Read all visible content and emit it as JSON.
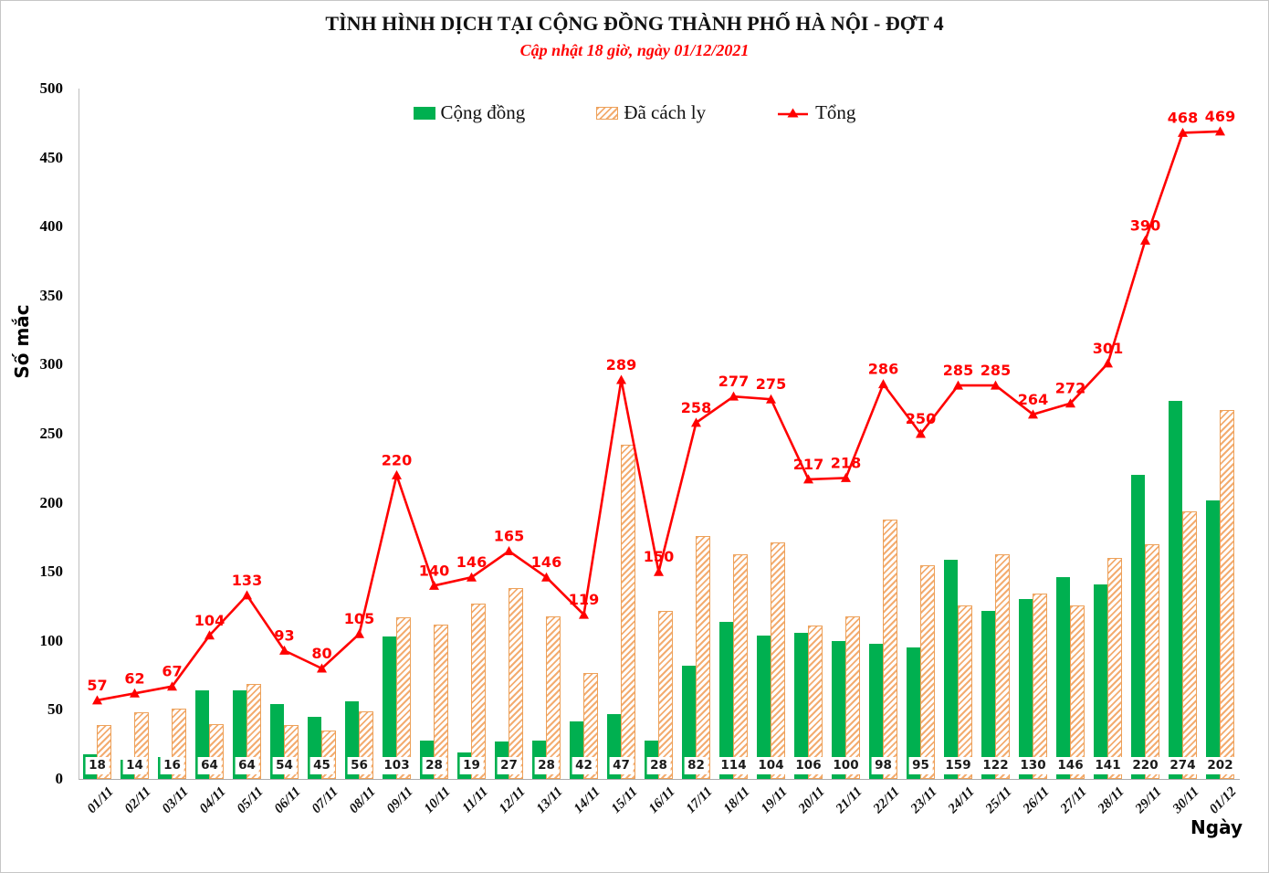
{
  "title": "TÌNH HÌNH DỊCH TẠI CỘNG ĐỒNG THÀNH PHỐ HÀ NỘI - ĐỢT 4",
  "subtitle": "Cập nhật 18 giờ, ngày 01/12/2021",
  "legend": [
    {
      "label": "Cộng đồng",
      "swatch": "green-solid-square",
      "color": "#00B050"
    },
    {
      "label": "Đã cách ly",
      "swatch": "orange-hatched-square",
      "color": "#EDA159"
    },
    {
      "label": "Tổng",
      "swatch": "red-line-triangle",
      "color": "#FF0000"
    }
  ],
  "chart_data": {
    "type": "bar",
    "title": "TÌNH HÌNH DỊCH TẠI CỘNG ĐỒNG THÀNH PHỐ HÀ NỘI - ĐỢT 4",
    "subtitle": "Cập nhật 18 giờ, ngày 01/12/2021",
    "xlabel": "Ngày",
    "ylabel": "Số mắc",
    "ylim": [
      0,
      500
    ],
    "ytick_step": 50,
    "grid": false,
    "legend_position": "top",
    "categories": [
      "01/11",
      "02/11",
      "03/11",
      "04/11",
      "05/11",
      "06/11",
      "07/11",
      "08/11",
      "09/11",
      "10/11",
      "11/11",
      "12/11",
      "13/11",
      "14/11",
      "15/11",
      "16/11",
      "17/11",
      "18/11",
      "19/11",
      "20/11",
      "21/11",
      "22/11",
      "23/11",
      "24/11",
      "25/11",
      "26/11",
      "27/11",
      "28/11",
      "29/11",
      "30/11",
      "01/12"
    ],
    "series": [
      {
        "name": "Cộng đồng",
        "type": "bar",
        "style": "solid",
        "color": "#00B050",
        "labels_shown": true,
        "values": [
          18,
          14,
          16,
          64,
          64,
          54,
          45,
          56,
          103,
          28,
          19,
          27,
          28,
          42,
          47,
          28,
          82,
          114,
          104,
          106,
          100,
          98,
          95,
          159,
          122,
          130,
          146,
          141,
          220,
          274,
          202
        ]
      },
      {
        "name": "Đã cách ly",
        "type": "bar",
        "style": "hatched",
        "color": "#EDA159",
        "labels_shown": false,
        "values": [
          39,
          48,
          51,
          40,
          69,
          39,
          35,
          49,
          117,
          112,
          127,
          138,
          118,
          77,
          242,
          122,
          176,
          163,
          171,
          111,
          118,
          188,
          155,
          126,
          163,
          134,
          126,
          160,
          170,
          194,
          267
        ]
      },
      {
        "name": "Tổng",
        "type": "line",
        "marker": "triangle",
        "color": "#FF0000",
        "labels_shown": true,
        "values": [
          57,
          62,
          67,
          104,
          133,
          93,
          80,
          105,
          220,
          140,
          146,
          165,
          146,
          119,
          289,
          150,
          258,
          277,
          275,
          217,
          218,
          286,
          250,
          285,
          285,
          264,
          272,
          301,
          390,
          468,
          469
        ]
      }
    ]
  }
}
